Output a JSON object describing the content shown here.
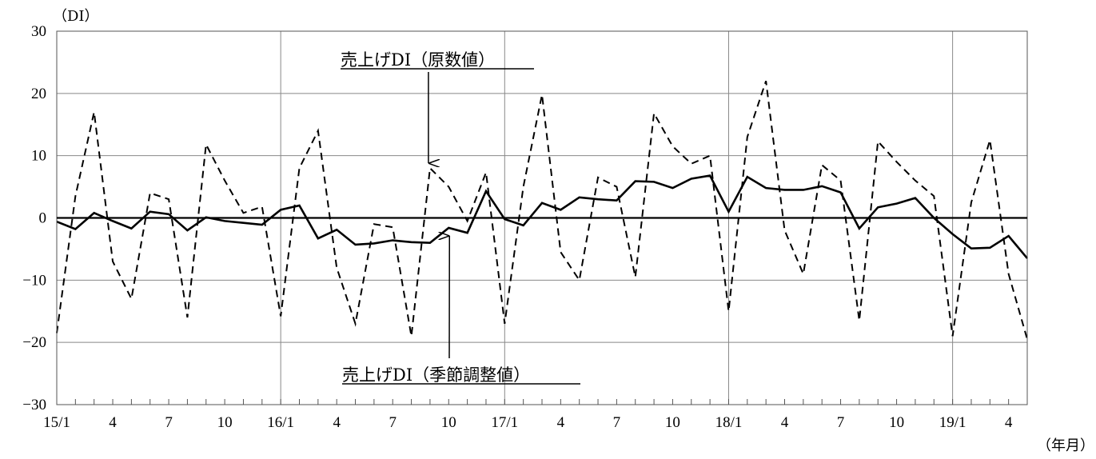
{
  "chart_data": {
    "type": "line",
    "title": "",
    "y_unit_label": "（DI）",
    "x_unit_label": "（年月）",
    "ylim": [
      -30,
      30
    ],
    "yticks": [
      30,
      20,
      10,
      0,
      -10,
      -20,
      -30
    ],
    "ytick_labels": [
      "30",
      "20",
      "10",
      "0",
      "−10",
      "−20",
      "−30"
    ],
    "x_tick_labels": [
      "15/1",
      "4",
      "7",
      "10",
      "16/1",
      "4",
      "7",
      "10",
      "17/1",
      "4",
      "7",
      "10",
      "18/1",
      "4",
      "7",
      "10",
      "19/1",
      "4"
    ],
    "x_tick_label_month_index": [
      0,
      3,
      6,
      9,
      12,
      15,
      18,
      21,
      24,
      27,
      30,
      33,
      36,
      39,
      42,
      45,
      48,
      51
    ],
    "vertical_gridline_month_index": [
      12,
      24,
      36,
      48
    ],
    "month_count": 53,
    "grid": true,
    "series": [
      {
        "name": "売上げDI（原数値）",
        "style": "dashed",
        "color": "#000000",
        "values": [
          -18.5,
          3.5,
          17,
          -7,
          -13,
          4,
          3,
          -16,
          11.8,
          6,
          0.8,
          1.8,
          -15.8,
          8,
          14,
          -8,
          -17,
          -1,
          -1.5,
          -19,
          8,
          5,
          -0.5,
          7.3,
          -17,
          5,
          19.8,
          -5.5,
          -10,
          6.5,
          5,
          -9.5,
          16.8,
          11.5,
          8.7,
          10,
          -15,
          13,
          22,
          -2,
          -9,
          8.5,
          6,
          -16.5,
          12.3,
          9,
          6,
          3.5,
          -19,
          2.5,
          12.5,
          -9,
          -19.5
        ]
      },
      {
        "name": "売上げDI（季節調整値）",
        "style": "solid",
        "color": "#000000",
        "values": [
          -0.6,
          -1.8,
          0.8,
          -0.5,
          -1.7,
          1.0,
          0.6,
          -2.0,
          0.1,
          -0.5,
          -0.8,
          -1.1,
          1.3,
          2.0,
          -3.3,
          -1.9,
          -4.3,
          -4.1,
          -3.6,
          -3.9,
          -4.0,
          -1.6,
          -2.4,
          4.3,
          -0.2,
          -1.2,
          2.4,
          1.3,
          3.3,
          3.0,
          2.8,
          5.9,
          5.8,
          4.8,
          6.3,
          6.8,
          1.0,
          6.6,
          4.8,
          4.5,
          4.5,
          5.1,
          4.1,
          -1.7,
          1.7,
          2.3,
          3.2,
          0,
          -2.6,
          -4.9,
          -4.8,
          -2.9,
          -6.5
        ]
      }
    ],
    "annotations": [
      {
        "text": "売上げDI（原数値）",
        "points_to_series": 0,
        "month_index": 20
      },
      {
        "text": "売上げDI（季節調整値）",
        "points_to_series": 1,
        "month_index": 21
      }
    ]
  }
}
